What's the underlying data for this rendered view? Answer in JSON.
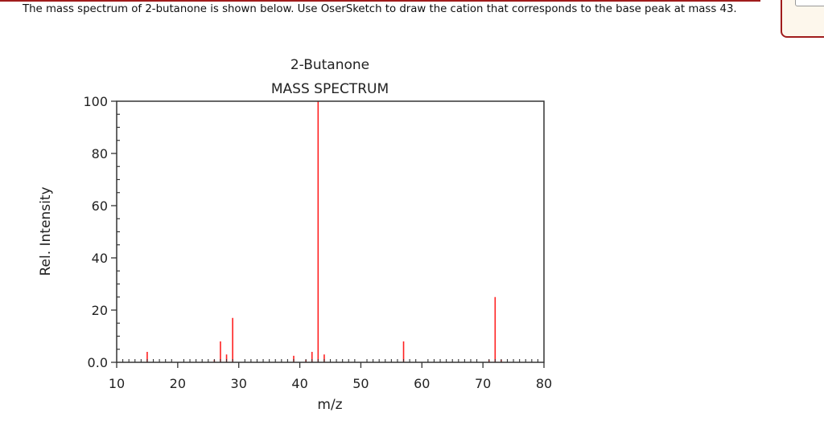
{
  "question": {
    "text": "The mass spectrum of 2-butanone is shown below.  Use OserSketch to draw the cation that corresponds to the base peak at mass 43."
  },
  "chart_data": {
    "type": "bar",
    "title": "2-Butanone",
    "subtitle": "MASS SPECTRUM",
    "xlabel": "m/z",
    "ylabel": "Rel. Intensity",
    "xlim": [
      10,
      80
    ],
    "ylim": [
      0,
      100
    ],
    "xticks": [
      10,
      20,
      30,
      40,
      50,
      60,
      70,
      80
    ],
    "yticks": [
      "0.0",
      "20",
      "40",
      "60",
      "80",
      "100"
    ],
    "grid": false,
    "legend": null,
    "bar_color": "#ff2020",
    "x": [
      15,
      26,
      27,
      28,
      29,
      39,
      41,
      42,
      43,
      44,
      57,
      71,
      72,
      73
    ],
    "values": [
      4,
      1,
      8,
      3,
      17,
      2.5,
      1,
      4,
      100,
      3,
      8,
      1,
      25,
      1
    ]
  },
  "colors": {
    "accent": "#a01c1c",
    "axis": "#333333",
    "peak": "#ff2020"
  }
}
